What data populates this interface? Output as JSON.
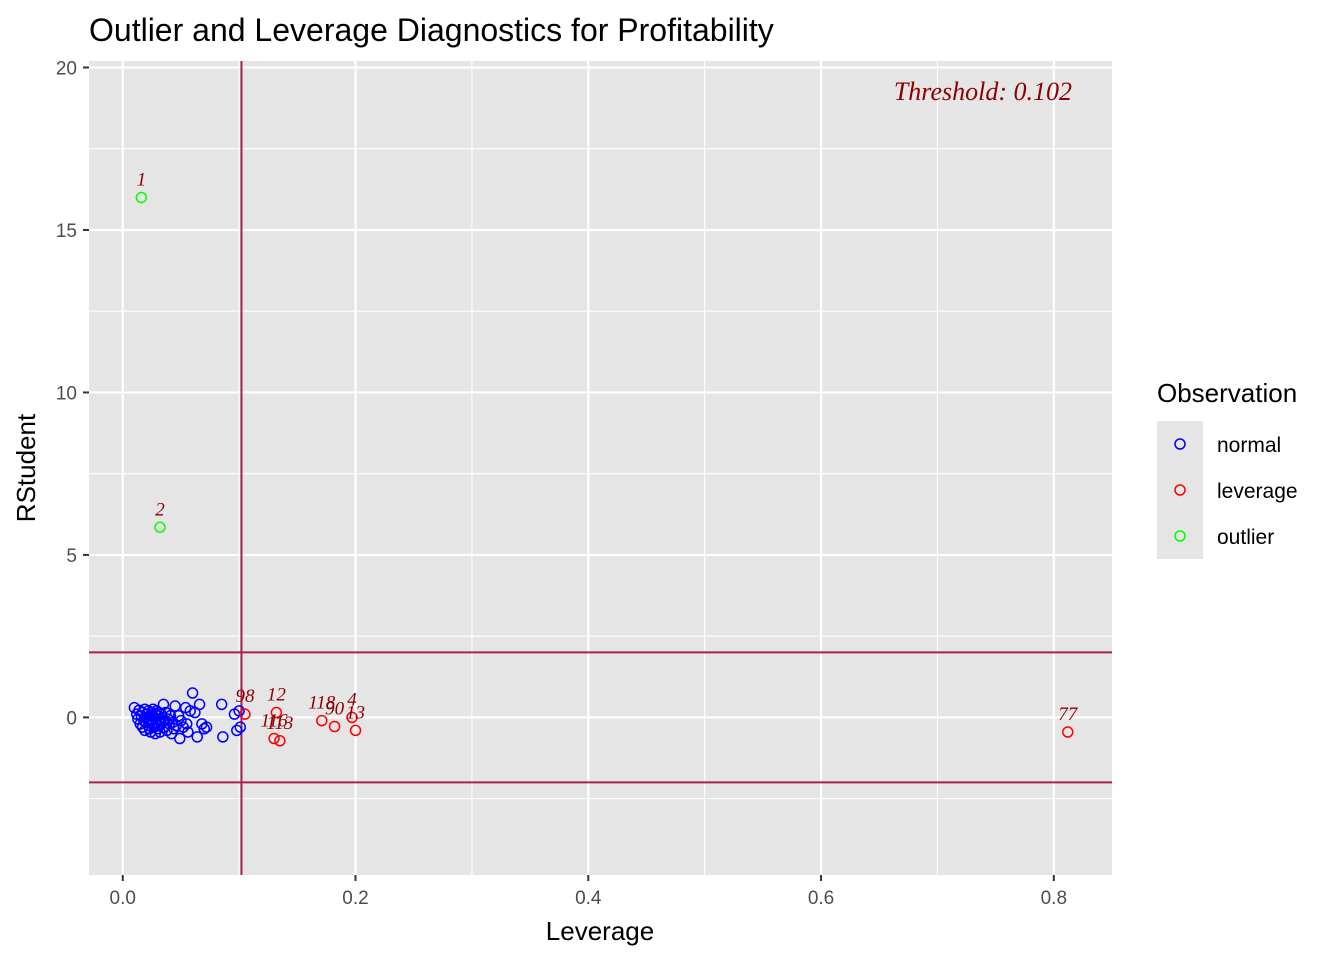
{
  "chart_data": {
    "type": "scatter",
    "title": "Outlier and Leverage Diagnostics for Profitability",
    "xlabel": "Leverage",
    "ylabel": "RStudent",
    "xlim": [
      -0.029,
      0.85
    ],
    "ylim": [
      -4.85,
      20.2
    ],
    "x_ticks": [
      0.0,
      0.2,
      0.4,
      0.6,
      0.8
    ],
    "x_tick_labels": [
      "0.0",
      "0.2",
      "0.4",
      "0.6",
      "0.8"
    ],
    "y_ticks": [
      0,
      5,
      10,
      15,
      20
    ],
    "y_tick_labels": [
      "0",
      "5",
      "10",
      "15",
      "20"
    ],
    "grid": true,
    "legend_position": "right",
    "legend_title": "Observation",
    "colors": {
      "panel": "#e5e5e5",
      "grid": "#ffffff",
      "threshold_line": "#a8204e",
      "normal": "#0000ff",
      "leverage": "#ff0000",
      "outlier": "#00ff00",
      "label": "#8b0000"
    },
    "threshold_annotation": "Threshold: 0.102",
    "reference_lines": {
      "vertical_x": 0.102,
      "horizontal_y": [
        -2,
        2
      ]
    },
    "series": [
      {
        "name": "normal",
        "points": [
          [
            0.01,
            0.3
          ],
          [
            0.012,
            0.1
          ],
          [
            0.013,
            -0.05
          ],
          [
            0.014,
            0.22
          ],
          [
            0.015,
            -0.2
          ],
          [
            0.016,
            0.05
          ],
          [
            0.017,
            -0.3
          ],
          [
            0.017,
            0.15
          ],
          [
            0.018,
            -0.1
          ],
          [
            0.019,
            0.25
          ],
          [
            0.019,
            -0.4
          ],
          [
            0.02,
            0.0
          ],
          [
            0.02,
            -0.15
          ],
          [
            0.021,
            0.1
          ],
          [
            0.022,
            -0.25
          ],
          [
            0.022,
            0.2
          ],
          [
            0.023,
            -0.05
          ],
          [
            0.023,
            -0.35
          ],
          [
            0.024,
            0.05
          ],
          [
            0.024,
            -0.45
          ],
          [
            0.025,
            0.15
          ],
          [
            0.025,
            -0.1
          ],
          [
            0.026,
            0.25
          ],
          [
            0.026,
            -0.2
          ],
          [
            0.027,
            0.0
          ],
          [
            0.027,
            -0.3
          ],
          [
            0.028,
            0.1
          ],
          [
            0.028,
            -0.5
          ],
          [
            0.029,
            0.2
          ],
          [
            0.029,
            -0.15
          ],
          [
            0.03,
            0.05
          ],
          [
            0.03,
            -0.35
          ],
          [
            0.031,
            0.15
          ],
          [
            0.031,
            -0.25
          ],
          [
            0.032,
            -0.05
          ],
          [
            0.032,
            -0.45
          ],
          [
            0.033,
            0.1
          ],
          [
            0.033,
            -0.2
          ],
          [
            0.034,
            0.0
          ],
          [
            0.035,
            -0.3
          ],
          [
            0.035,
            0.4
          ],
          [
            0.036,
            -0.1
          ],
          [
            0.037,
            0.15
          ],
          [
            0.038,
            -0.4
          ],
          [
            0.039,
            -0.05
          ],
          [
            0.04,
            -0.2
          ],
          [
            0.041,
            0.05
          ],
          [
            0.042,
            -0.5
          ],
          [
            0.043,
            -0.15
          ],
          [
            0.044,
            -0.35
          ],
          [
            0.045,
            0.35
          ],
          [
            0.046,
            -0.25
          ],
          [
            0.048,
            0.05
          ],
          [
            0.049,
            -0.65
          ],
          [
            0.05,
            -0.1
          ],
          [
            0.052,
            -0.3
          ],
          [
            0.054,
            0.3
          ],
          [
            0.055,
            -0.2
          ],
          [
            0.056,
            -0.45
          ],
          [
            0.058,
            0.2
          ],
          [
            0.06,
            0.75
          ],
          [
            0.062,
            0.15
          ],
          [
            0.064,
            -0.6
          ],
          [
            0.066,
            0.4
          ],
          [
            0.068,
            -0.2
          ],
          [
            0.07,
            -0.35
          ],
          [
            0.072,
            -0.3
          ],
          [
            0.085,
            0.4
          ],
          [
            0.086,
            -0.6
          ],
          [
            0.096,
            0.1
          ],
          [
            0.098,
            -0.4
          ],
          [
            0.1,
            0.2
          ],
          [
            0.101,
            -0.3
          ]
        ]
      },
      {
        "name": "leverage",
        "points": [
          [
            0.105,
            0.1
          ],
          [
            0.13,
            -0.65
          ],
          [
            0.132,
            0.15
          ],
          [
            0.135,
            -0.72
          ],
          [
            0.171,
            -0.1
          ],
          [
            0.182,
            -0.28
          ],
          [
            0.197,
            0.0
          ],
          [
            0.2,
            -0.4
          ],
          [
            0.812,
            -0.45
          ]
        ],
        "labels": [
          "98",
          "116",
          "12",
          "113",
          "118",
          "90",
          "4",
          "13",
          "77"
        ]
      },
      {
        "name": "outlier",
        "points": [
          [
            0.016,
            16.0
          ],
          [
            0.032,
            5.85
          ]
        ],
        "labels": [
          "1",
          "2"
        ]
      }
    ]
  }
}
